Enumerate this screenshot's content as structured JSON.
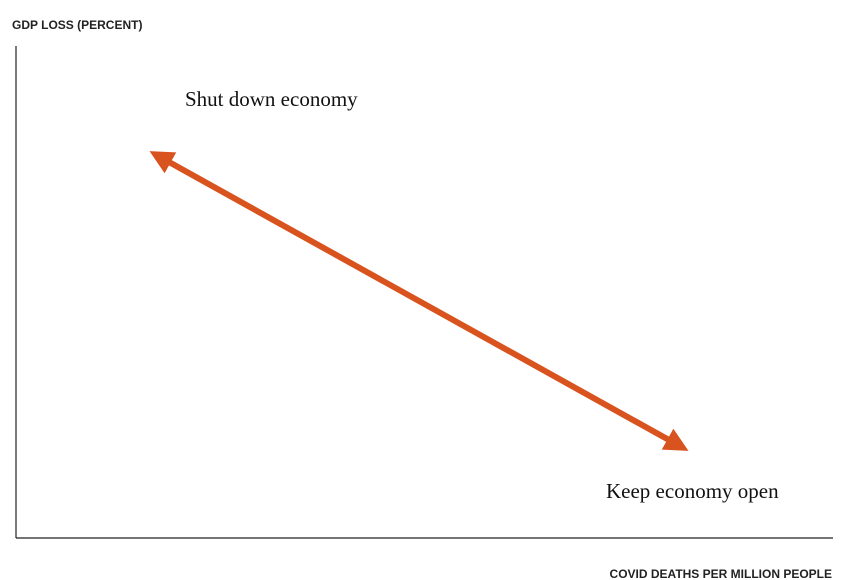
{
  "axes": {
    "y_label": "GDP LOSS (PERCENT)",
    "x_label": "COVID DEATHS PER MILLION PEOPLE"
  },
  "annotations": {
    "top_left": "Shut down economy",
    "bottom_right": "Keep economy open"
  }
}
